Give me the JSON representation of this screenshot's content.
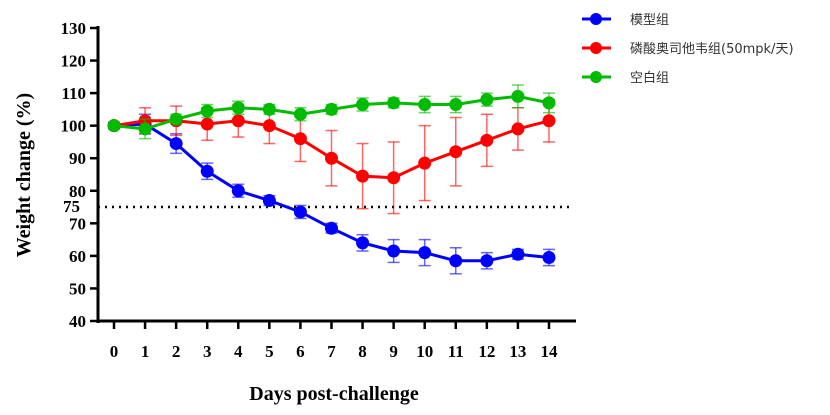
{
  "chart_data": {
    "type": "line",
    "xlabel": "Days post-challenge",
    "ylabel": "Weight change (%)",
    "ylim": [
      40,
      130
    ],
    "yticks": [
      40,
      50,
      60,
      70,
      80,
      90,
      100,
      110,
      120,
      130
    ],
    "extra_ytick": "75",
    "x": [
      0,
      1,
      2,
      3,
      4,
      5,
      6,
      7,
      8,
      9,
      10,
      11,
      12,
      13,
      14
    ],
    "reference_line": 75,
    "legend_position": "top-right",
    "series": [
      {
        "name": "模型组",
        "color": "#0000ff",
        "values": [
          100,
          100.5,
          94.5,
          86,
          80,
          77,
          73.5,
          68.5,
          64,
          61.5,
          61,
          58.5,
          58.5,
          60.5,
          59.5
        ],
        "errors": [
          1,
          3,
          3,
          2.5,
          2,
          1.5,
          2,
          1.5,
          2.5,
          3.5,
          4,
          4,
          2.5,
          1.5,
          2.5
        ]
      },
      {
        "name": "磷酸奥司他韦组(50mpk/天)",
        "color": "#ff0000",
        "values": [
          100,
          101.5,
          101.5,
          100.5,
          101.5,
          100,
          96,
          90,
          84.5,
          84,
          88.5,
          92,
          95.5,
          99,
          101.5
        ],
        "errors": [
          0.5,
          4,
          4.5,
          5,
          5,
          5.5,
          7,
          8.5,
          10,
          11,
          11.5,
          10.5,
          8,
          6.5,
          6.5
        ]
      },
      {
        "name": "空白组",
        "color": "#00bb00",
        "values": [
          100,
          99,
          102,
          104.5,
          105.5,
          105,
          103.5,
          105,
          106.5,
          107,
          106.5,
          106.5,
          108,
          109,
          107
        ],
        "errors": [
          0.5,
          3,
          1.5,
          2,
          2,
          1.5,
          2,
          1.5,
          2,
          1.5,
          2.5,
          2.5,
          2,
          3.5,
          3
        ]
      }
    ]
  }
}
